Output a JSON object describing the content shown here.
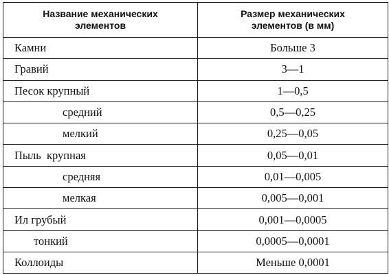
{
  "table": {
    "headers": {
      "name": [
        "Название механических",
        "элементов"
      ],
      "size": [
        "Размер механических",
        "элементов (в мм)"
      ]
    },
    "rows": [
      {
        "name": "Камни",
        "size": "Больше 3",
        "indent": 0
      },
      {
        "name": "Гравий",
        "size": "3—1",
        "indent": 0
      },
      {
        "name": "Песок крупный",
        "size": "1—0,5",
        "indent": 0
      },
      {
        "name": "средний",
        "size": "0,5—0,25",
        "indent": 1
      },
      {
        "name": "мелкий",
        "size": "0,25—0,05",
        "indent": 1
      },
      {
        "name": "Пыль  крупная",
        "size": "0,05—0,01",
        "indent": 0
      },
      {
        "name": "средняя",
        "size": "0,01—0,005",
        "indent": 1
      },
      {
        "name": "мелкая",
        "size": "0,005—0,001",
        "indent": 1
      },
      {
        "name": "Ил грубый",
        "size": "0,001—0,0005",
        "indent": 0
      },
      {
        "name": "тонкий",
        "size": "0,0005—0,0001",
        "indent": 2
      },
      {
        "name": "Коллоиды",
        "size": "Меньше 0,0001",
        "indent": 0
      }
    ]
  }
}
